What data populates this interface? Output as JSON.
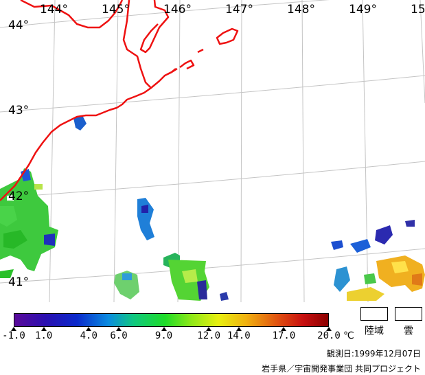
{
  "map": {
    "lon_labels": [
      "144°",
      "145°",
      "146°",
      "147°",
      "148°",
      "149°",
      "15"
    ],
    "lat_labels": [
      "44°",
      "43°",
      "42°",
      "41°"
    ],
    "coastline_color": "#ee1111",
    "grid_color": "#bfbfbf"
  },
  "colorbar": {
    "min": -1.0,
    "max": 20.0,
    "ticks": [
      "-1.0",
      "1.0",
      "4.0",
      "6.0",
      "9.0",
      "12.0",
      "14.0",
      "17.0",
      "20.0"
    ],
    "unit": "℃"
  },
  "legend": {
    "land_label": "陸域",
    "cloud_label": "雲"
  },
  "footer": {
    "observation_date": "観測日:1999年12月07日",
    "credit": "岩手県／宇宙開発事業団 共同プロジェクト"
  }
}
